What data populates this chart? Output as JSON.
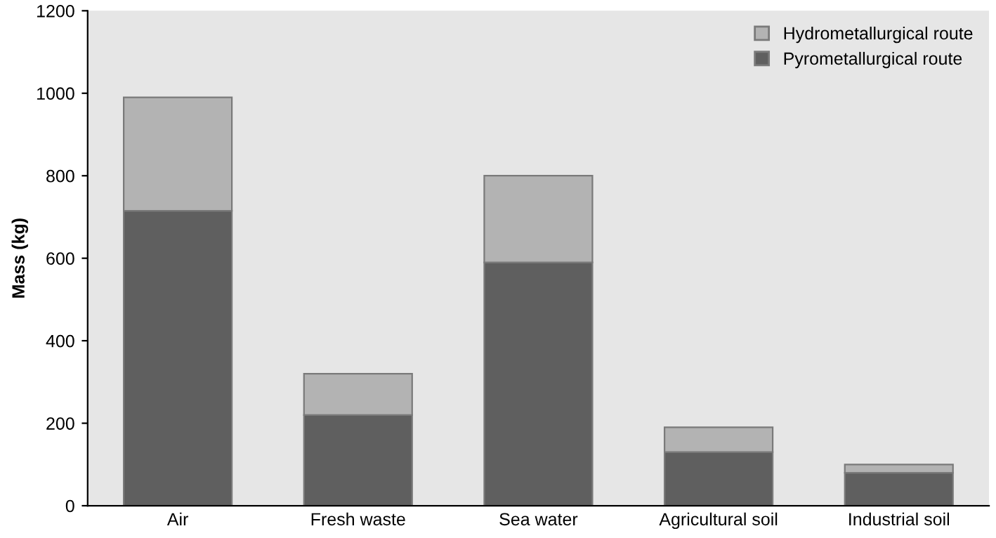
{
  "chart_data": {
    "type": "bar",
    "stacked": true,
    "ylabel": "Mass (kg)",
    "categories": [
      "Air",
      "Fresh waste",
      "Sea water",
      "Agricultural soil",
      "Industrial soil"
    ],
    "series": [
      {
        "name": "Pyrometallurgical route",
        "color": "#5f5f5f",
        "values": [
          715,
          220,
          590,
          130,
          80
        ]
      },
      {
        "name": "Hydrometallurgical route",
        "color": "#b3b3b3",
        "values": [
          275,
          100,
          210,
          60,
          20
        ]
      }
    ],
    "ylim": [
      0,
      1200
    ],
    "yticks": [
      0,
      200,
      400,
      600,
      800,
      1000,
      1200
    ],
    "grid": false,
    "legend": "top right"
  }
}
